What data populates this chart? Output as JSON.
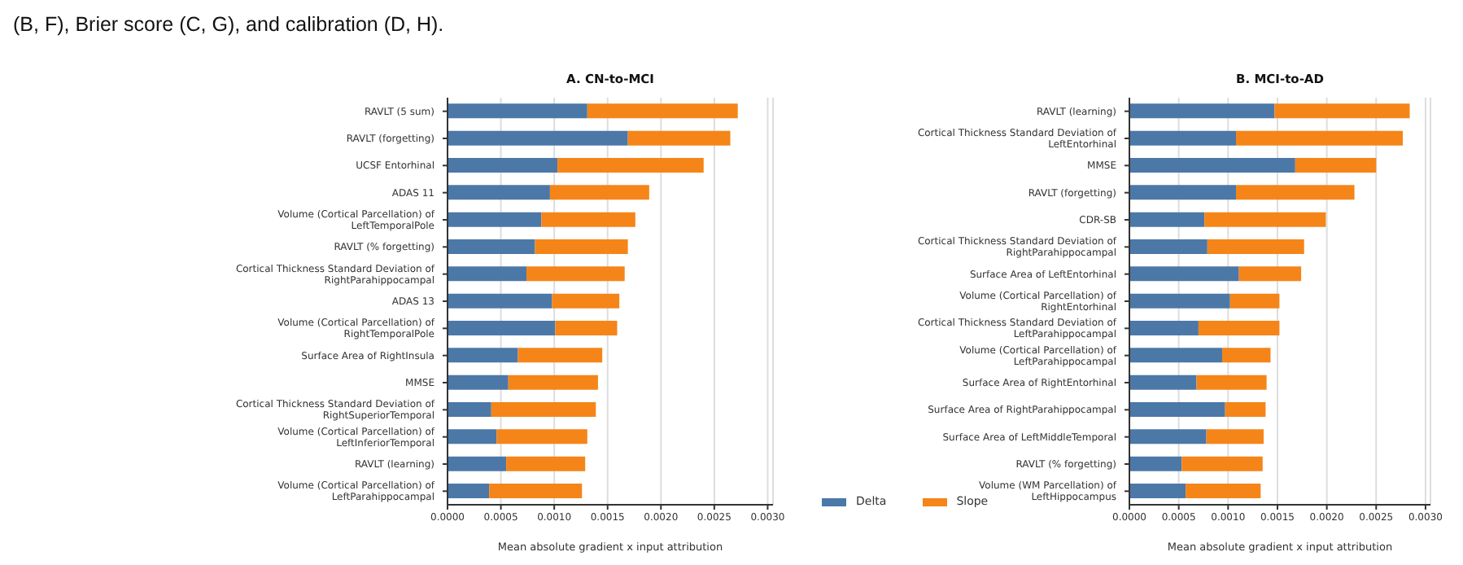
{
  "chart_data": [
    {
      "type": "bar",
      "orientation": "horizontal",
      "stacked": true,
      "title": "A. CN-to-MCI",
      "xlabel": "Mean absolute gradient x input attribution",
      "annotations": [
        "(B, F), Brier score (C, G), and calibration (D, H)."
      ],
      "categories": [
        "RAVLT (5 sum)",
        "RAVLT (forgetting)",
        "UCSF Entorhinal",
        "ADAS 11",
        "Volume (Cortical Parcellation) of\nLeftTemporalPole",
        "RAVLT (% forgetting)",
        "Cortical Thickness Standard Deviation of\nRightParahippocampal",
        "ADAS 13",
        "Volume (Cortical Parcellation) of\nRightTemporalPole",
        "Surface Area of RightInsula",
        "MMSE",
        "Cortical Thickness Standard Deviation of\nRightSuperiorTemporal",
        "Volume (Cortical Parcellation) of\nLeftInferiorTemporal",
        "RAVLT (learning)",
        "Volume (Cortical Parcellation) of\nLeftParahippocampal"
      ],
      "series": [
        {
          "name": "Delta",
          "color": "#4c78a8",
          "values": [
            0.00131,
            0.00169,
            0.00103,
            0.00096,
            0.00088,
            0.00082,
            0.00074,
            0.00098,
            0.00101,
            0.00066,
            0.00057,
            0.00041,
            0.00046,
            0.00055,
            0.00039
          ]
        },
        {
          "name": "Slope",
          "color": "#f58518",
          "values": [
            0.00141,
            0.00096,
            0.00137,
            0.00093,
            0.00088,
            0.00087,
            0.00092,
            0.00063,
            0.00058,
            0.00079,
            0.00084,
            0.00098,
            0.00085,
            0.00074,
            0.00087
          ]
        }
      ],
      "xlim": [
        0,
        0.00305
      ],
      "xticks": [
        {
          "value": 0,
          "label": "0.0000"
        },
        {
          "value": 0.0005,
          "label": "0.0005"
        },
        {
          "value": 0.001,
          "label": "0.0010"
        },
        {
          "value": 0.0015,
          "label": "0.0015"
        },
        {
          "value": 0.002,
          "label": "0.0020"
        },
        {
          "value": 0.0025,
          "label": "0.0025"
        },
        {
          "value": 0.003,
          "label": "0.0030"
        }
      ],
      "grid": "x",
      "legend": "bottom right"
    },
    {
      "type": "bar",
      "orientation": "horizontal",
      "stacked": true,
      "title": "B. MCI-to-AD",
      "xlabel": "Mean absolute gradient x input attribution",
      "categories": [
        "RAVLT (learning)",
        "Cortical Thickness Standard Deviation of\nLeftEntorhinal",
        "MMSE",
        "RAVLT (forgetting)",
        "CDR-SB",
        "Cortical Thickness Standard Deviation of\nRightParahippocampal",
        "Surface Area of LeftEntorhinal",
        "Volume (Cortical Parcellation) of\nRightEntorhinal",
        "Cortical Thickness Standard Deviation of\nLeftParahippocampal",
        "Volume (Cortical Parcellation) of\nLeftParahippocampal",
        "Surface Area of RightEntorhinal",
        "Surface Area of RightParahippocampal",
        "Surface Area of LeftMiddleTemporal",
        "RAVLT (% forgetting)",
        "Volume (WM Parcellation) of\nLeftHippocampus"
      ],
      "series": [
        {
          "color": "#4c78a8",
          "values": [
            0.00147,
            0.00108,
            0.00168,
            0.00108,
            0.00076,
            0.00079,
            0.00111,
            0.00102,
            0.0007,
            0.00094,
            0.00068,
            0.00097,
            0.00078,
            0.00053,
            0.00057
          ]
        },
        {
          "color": "#f58518",
          "values": [
            0.00137,
            0.00169,
            0.00082,
            0.0012,
            0.00123,
            0.00098,
            0.00063,
            0.0005,
            0.00082,
            0.00049,
            0.00071,
            0.00041,
            0.00058,
            0.00082,
            0.00076
          ]
        }
      ],
      "xlim": [
        0,
        0.00305
      ],
      "xticks": [
        {
          "value": 0,
          "label": "0.0000"
        },
        {
          "value": 0.0005,
          "label": "0.0005"
        },
        {
          "value": 0.001,
          "label": "0.0010"
        },
        {
          "value": 0.0015,
          "label": "0.0015"
        },
        {
          "value": 0.002,
          "label": "0.0020"
        },
        {
          "value": 0.0025,
          "label": "0.0025"
        },
        {
          "value": 0.003,
          "label": "0.0030"
        }
      ],
      "grid": "x"
    }
  ]
}
